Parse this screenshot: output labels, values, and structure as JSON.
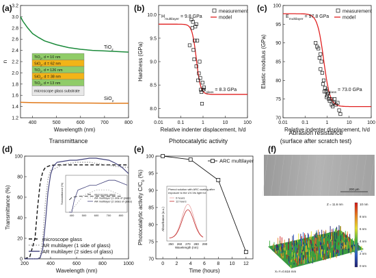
{
  "headers": {
    "d": "Transmittance",
    "e": "Photocatalytic activity",
    "f1": "Abrasion resistance",
    "f2": "(surface after scratch test)"
  },
  "chart_data": [
    {
      "panel": "(a)",
      "type": "line",
      "xlabel": "Wavelength (nm)",
      "ylabel": "n",
      "xlim": [
        350,
        800
      ],
      "ylim": [
        1.2,
        3.2
      ],
      "xticks": [
        "400",
        "500",
        "600",
        "700",
        "800"
      ],
      "yticks": [
        "1.2",
        "1.4",
        "1.6",
        "1.8",
        "2.0",
        "2.2",
        "2.4",
        "2.6",
        "2.8",
        "3.0",
        "3.2"
      ],
      "series": [
        {
          "name": "TiO2",
          "label_main": "TiO",
          "label_sub": "2",
          "color": "#1a8a3a",
          "x": [
            350,
            360,
            380,
            400,
            425,
            450,
            500,
            550,
            600,
            650,
            700,
            750,
            800
          ],
          "y": [
            3.0,
            2.92,
            2.8,
            2.7,
            2.63,
            2.57,
            2.5,
            2.45,
            2.42,
            2.4,
            2.39,
            2.38,
            2.37
          ]
        },
        {
          "name": "SiO2",
          "label_main": "SiO",
          "label_sub": "2",
          "color": "#e07818",
          "x": [
            350,
            400,
            500,
            600,
            700,
            800
          ],
          "y": [
            1.475,
            1.47,
            1.465,
            1.462,
            1.46,
            1.458
          ]
        }
      ],
      "stack": [
        {
          "text": "TiO2, d = 10 nm",
          "m": "TiO",
          "s": "2",
          "r": ", d = 10 nm",
          "color": "#90cc68"
        },
        {
          "text": "SiO2, d = 62 nm",
          "m": "SiO",
          "s": "2",
          "r": ", d = 62 nm",
          "color": "#f2b418"
        },
        {
          "text": "TiO2, d = 126 nm",
          "m": "TiO",
          "s": "2",
          "r": ", d = 126 nm",
          "color": "#90cc68"
        },
        {
          "text": "SiO2, d = 38 nm",
          "m": "SiO",
          "s": "2",
          "r": ", d = 38 nm",
          "color": "#f2b418"
        },
        {
          "text": "TiO2, d = 13 nm",
          "m": "TiO",
          "s": "2",
          "r": ", d = 13 nm",
          "color": "#90cc68"
        },
        {
          "text": "microscope glass substrate",
          "m": "microscope glass substrate",
          "s": "",
          "r": "",
          "color": "#e8e8e8"
        }
      ]
    },
    {
      "panel": "(b)",
      "type": "scatter",
      "xlabel": "Relative indenter displacement, h/d",
      "ylabel": "Hardness (GPa)",
      "xscale": "log",
      "xlim": [
        0.01,
        100
      ],
      "ylim": [
        7.8,
        10.2
      ],
      "xticks": [
        "0.01",
        "0.1",
        "1",
        "10",
        "100"
      ],
      "yticks": [
        "8.0",
        "8.5",
        "9.0",
        "9.5",
        "10.0"
      ],
      "legend": [
        "measurement",
        "model"
      ],
      "legend_position": "top-right",
      "annotations": [
        {
          "m": "H",
          "s": "multilayer",
          "r": " = 9.8 GPa"
        },
        {
          "m": "H",
          "s": "glass",
          "r": " = 8.3 GPa"
        }
      ],
      "model": {
        "high": 9.8,
        "low": 8.3,
        "center": 0.5,
        "k": 4.5,
        "color": "#e02020"
      },
      "points": [
        [
          0.25,
          9.35
        ],
        [
          0.3,
          9.9
        ],
        [
          0.33,
          9.72
        ],
        [
          0.37,
          9.25
        ],
        [
          0.4,
          9.05
        ],
        [
          0.45,
          9.75
        ],
        [
          0.5,
          8.9
        ],
        [
          0.55,
          9.45
        ],
        [
          0.6,
          8.6
        ],
        [
          0.7,
          9.0
        ],
        [
          0.8,
          8.4
        ],
        [
          0.5,
          9.8
        ],
        [
          0.65,
          8.75
        ],
        [
          0.75,
          8.65
        ],
        [
          0.85,
          8.35
        ],
        [
          1.0,
          8.4
        ],
        [
          0.9,
          8.1
        ],
        [
          0.42,
          9.45
        ],
        [
          1.1,
          8.45
        ],
        [
          0.95,
          8.55
        ],
        [
          0.35,
          9.85
        ]
      ]
    },
    {
      "panel": "(c)",
      "type": "scatter",
      "xlabel": "Relative indenter displacement, h/d",
      "ylabel": "Elastic modulus (GPa)",
      "xscale": "log",
      "xlim": [
        0.01,
        100
      ],
      "ylim": [
        70,
        100
      ],
      "xticks": [
        "0.01",
        "0.1",
        "1",
        "10",
        "100"
      ],
      "yticks": [
        "70",
        "75",
        "80",
        "85",
        "90",
        "95",
        "100"
      ],
      "legend": [
        "measurement",
        "model"
      ],
      "legend_position": "top-right",
      "annotations": [
        {
          "m": "E",
          "s": "multilayer",
          "r": " = 97.8 GPa"
        },
        {
          "m": "E",
          "s": "glass",
          "r": " = 73.0 GPa"
        }
      ],
      "model": {
        "high": 97.8,
        "low": 73.0,
        "center": 0.7,
        "k": 3.0,
        "color": "#e02020"
      },
      "points": [
        [
          0.3,
          90
        ],
        [
          0.35,
          89
        ],
        [
          0.4,
          88.5
        ],
        [
          0.45,
          86
        ],
        [
          0.5,
          83
        ],
        [
          0.55,
          85
        ],
        [
          0.6,
          82
        ],
        [
          0.7,
          80
        ],
        [
          0.8,
          78
        ],
        [
          0.9,
          77
        ],
        [
          1.0,
          76
        ],
        [
          1.2,
          75
        ],
        [
          1.5,
          75
        ],
        [
          2.0,
          74
        ],
        [
          2.5,
          73.5
        ],
        [
          3.0,
          74
        ],
        [
          3.5,
          72
        ],
        [
          0.65,
          79
        ],
        [
          0.75,
          77
        ],
        [
          0.95,
          75.5
        ],
        [
          1.3,
          74.5
        ],
        [
          1.8,
          73
        ],
        [
          2.2,
          75
        ],
        [
          4.0,
          71
        ],
        [
          0.5,
          87
        ],
        [
          1.1,
          76.5
        ],
        [
          1.6,
          73.5
        ]
      ]
    },
    {
      "panel": "(d)",
      "type": "line",
      "xlabel": "Wavelength (nm)",
      "ylabel": "Transmittance (%)",
      "xlim": [
        200,
        1000
      ],
      "ylim": [
        0,
        100
      ],
      "xticks": [
        "200",
        "400",
        "600",
        "800",
        "1000"
      ],
      "yticks": [
        "0",
        "20",
        "40",
        "60",
        "80",
        "100"
      ],
      "series": [
        {
          "name": "microscope glass",
          "color": "#111",
          "dash": "5,3",
          "x": [
            200,
            240,
            280,
            300,
            320,
            340,
            360,
            380,
            400,
            450,
            500,
            600,
            700,
            800,
            900,
            1000
          ],
          "y": [
            0,
            2,
            20,
            50,
            74,
            85,
            89,
            90,
            91,
            91.5,
            91.5,
            91.5,
            91.5,
            91.5,
            91.5,
            91.5
          ]
        },
        {
          "name": "AR multilayer (1 side of glass)",
          "color": "#a0a0a0",
          "dash": "1.5,2",
          "x": [
            200,
            300,
            320,
            340,
            360,
            380,
            400,
            450,
            500,
            550,
            600,
            650,
            700,
            750,
            800,
            900,
            1000
          ],
          "y": [
            0,
            0,
            2,
            20,
            55,
            78,
            86,
            89,
            92,
            93,
            94,
            94,
            94,
            93,
            92,
            90,
            89
          ]
        },
        {
          "name": "AR multilayer (2 sides of glass)",
          "color": "#40407a",
          "dash": "",
          "x": [
            200,
            300,
            320,
            340,
            360,
            380,
            400,
            420,
            450,
            500,
            550,
            600,
            650,
            700,
            750,
            800,
            850,
            900,
            950,
            1000
          ],
          "y": [
            0,
            0,
            1,
            10,
            35,
            65,
            82,
            90,
            94,
            95,
            96,
            96,
            97,
            98,
            98,
            97,
            96,
            93,
            89,
            83
          ]
        }
      ],
      "inset": {
        "xticks": [
          "400",
          "500",
          "600",
          "700",
          "800"
        ],
        "ylabel": "Transmittance (%)",
        "legend": [
          "microscope glass",
          "AR multilayer (1 side of glass)",
          "AR multilayer (2 sides of glass)"
        ]
      }
    },
    {
      "panel": "(e)",
      "type": "line",
      "xlabel": "Time (hours)",
      "ylabel_main": "Photocatalytic activity C/C",
      "ylabel_sub": "0",
      "ylabel_end": " (%)",
      "xlim": [
        -1,
        13
      ],
      "ylim": [
        70,
        100
      ],
      "xticks": [
        "0",
        "2",
        "4",
        "6",
        "8",
        "10",
        "12"
      ],
      "yticks": [
        "70",
        "75",
        "80",
        "85",
        "90",
        "95",
        "100"
      ],
      "legend": [
        "ARC multilayer"
      ],
      "legend_position": "top-right",
      "series": [
        {
          "name": "ARC multilayer",
          "x": [
            0,
            4,
            8,
            12
          ],
          "y": [
            100,
            99,
            93,
            72
          ]
        }
      ],
      "inset": {
        "title_lines": [
          "Phenol solution with ARC coating after",
          "exposure to the UV-Vis light for:"
        ],
        "legend": [
          "0 hours",
          "12 hours"
        ],
        "xlabel": "Wavelength (nm)",
        "ylabel": "Absorbance (a.u.)",
        "xticks": [
          "250",
          "260",
          "270",
          "280",
          "290"
        ]
      }
    },
    {
      "panel": "(f)",
      "type": "heatmap",
      "scale_bar": "200 µm",
      "z_label": "Z = 11.6 nm",
      "xy_label": "X=Y=0.616 mm",
      "colorbar": [
        "10 nm",
        "8 nm",
        "6 nm",
        "4 nm",
        "2 nm",
        "0 nm"
      ]
    }
  ]
}
